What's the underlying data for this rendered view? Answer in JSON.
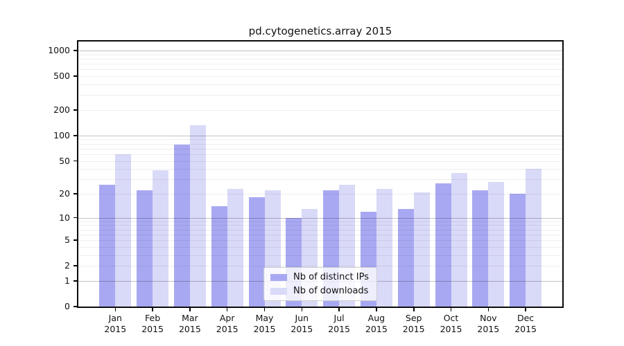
{
  "title": "pd.cytogenetics.array 2015",
  "chart_data": {
    "type": "bar",
    "title": "pd.cytogenetics.array 2015",
    "scale": "log1p",
    "grid": "on",
    "legend_position": "lower-center",
    "categories": [
      "Jan",
      "Feb",
      "Mar",
      "Apr",
      "May",
      "Jun",
      "Jul",
      "Aug",
      "Sep",
      "Oct",
      "Nov",
      "Dec"
    ],
    "year": "2015",
    "series": [
      {
        "name": "Nb of distinct IPs",
        "color": "#a8a8f2",
        "values": [
          26,
          22,
          78,
          14,
          18,
          10,
          22,
          12,
          13,
          27,
          22,
          20
        ]
      },
      {
        "name": "Nb of downloads",
        "color": "#d9d9f8",
        "values": [
          60,
          39,
          133,
          23,
          22,
          13,
          26,
          23,
          21,
          36,
          28,
          40
        ]
      }
    ],
    "y_ticks": [
      0,
      1,
      2,
      5,
      10,
      20,
      50,
      100,
      200,
      500,
      1000
    ],
    "y_major_gridlines": [
      1,
      10,
      100,
      1000
    ],
    "ylim": [
      0,
      1276
    ],
    "xlabel": "",
    "ylabel": ""
  }
}
